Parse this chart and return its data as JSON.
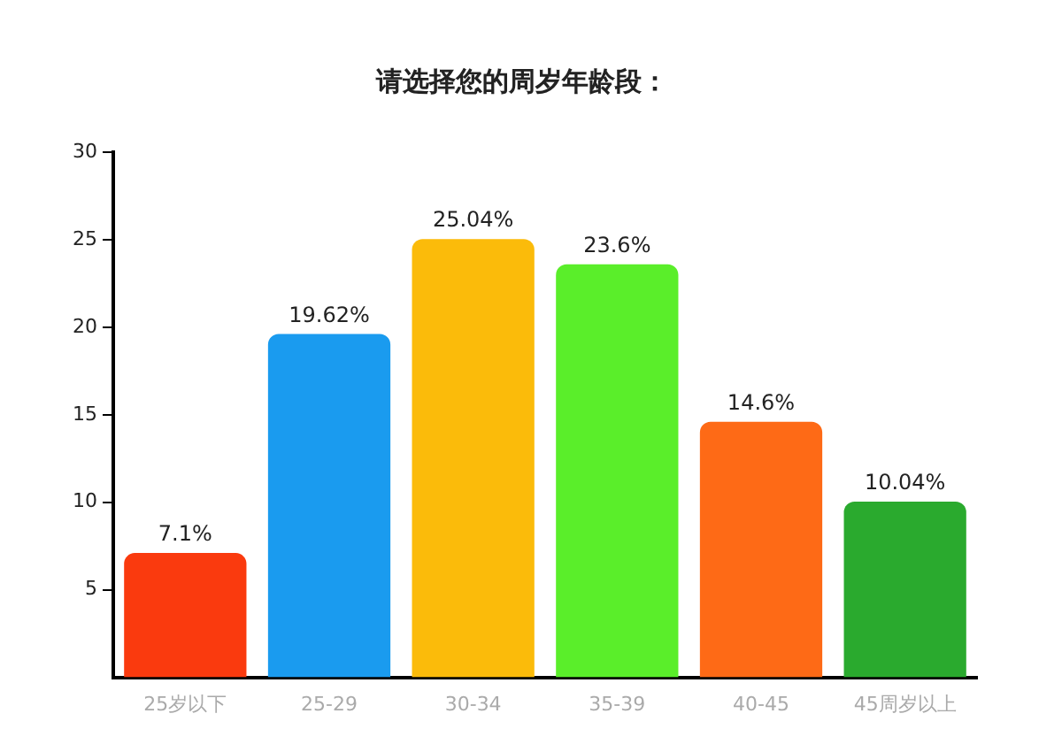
{
  "chart_data": {
    "type": "bar",
    "title": "请选择您的周岁年龄段：",
    "categories": [
      "25岁以下",
      "25-29",
      "30-34",
      "35-39",
      "40-45",
      "45周岁以上"
    ],
    "values": [
      7.1,
      19.62,
      25.04,
      23.6,
      14.6,
      10.04
    ],
    "colors": [
      "#fa3a0e",
      "#1a9bef",
      "#fbbb0a",
      "#5aee2a",
      "#fe6a16",
      "#2aaa2e"
    ],
    "value_labels": [
      "7.1%",
      "19.62%",
      "25.04%",
      "23.6%",
      "14.6%",
      "10.04%"
    ],
    "ylim": [
      0,
      30
    ],
    "yticks": [
      5,
      10,
      15,
      20,
      25,
      30
    ],
    "grid": false,
    "legend": false
  }
}
